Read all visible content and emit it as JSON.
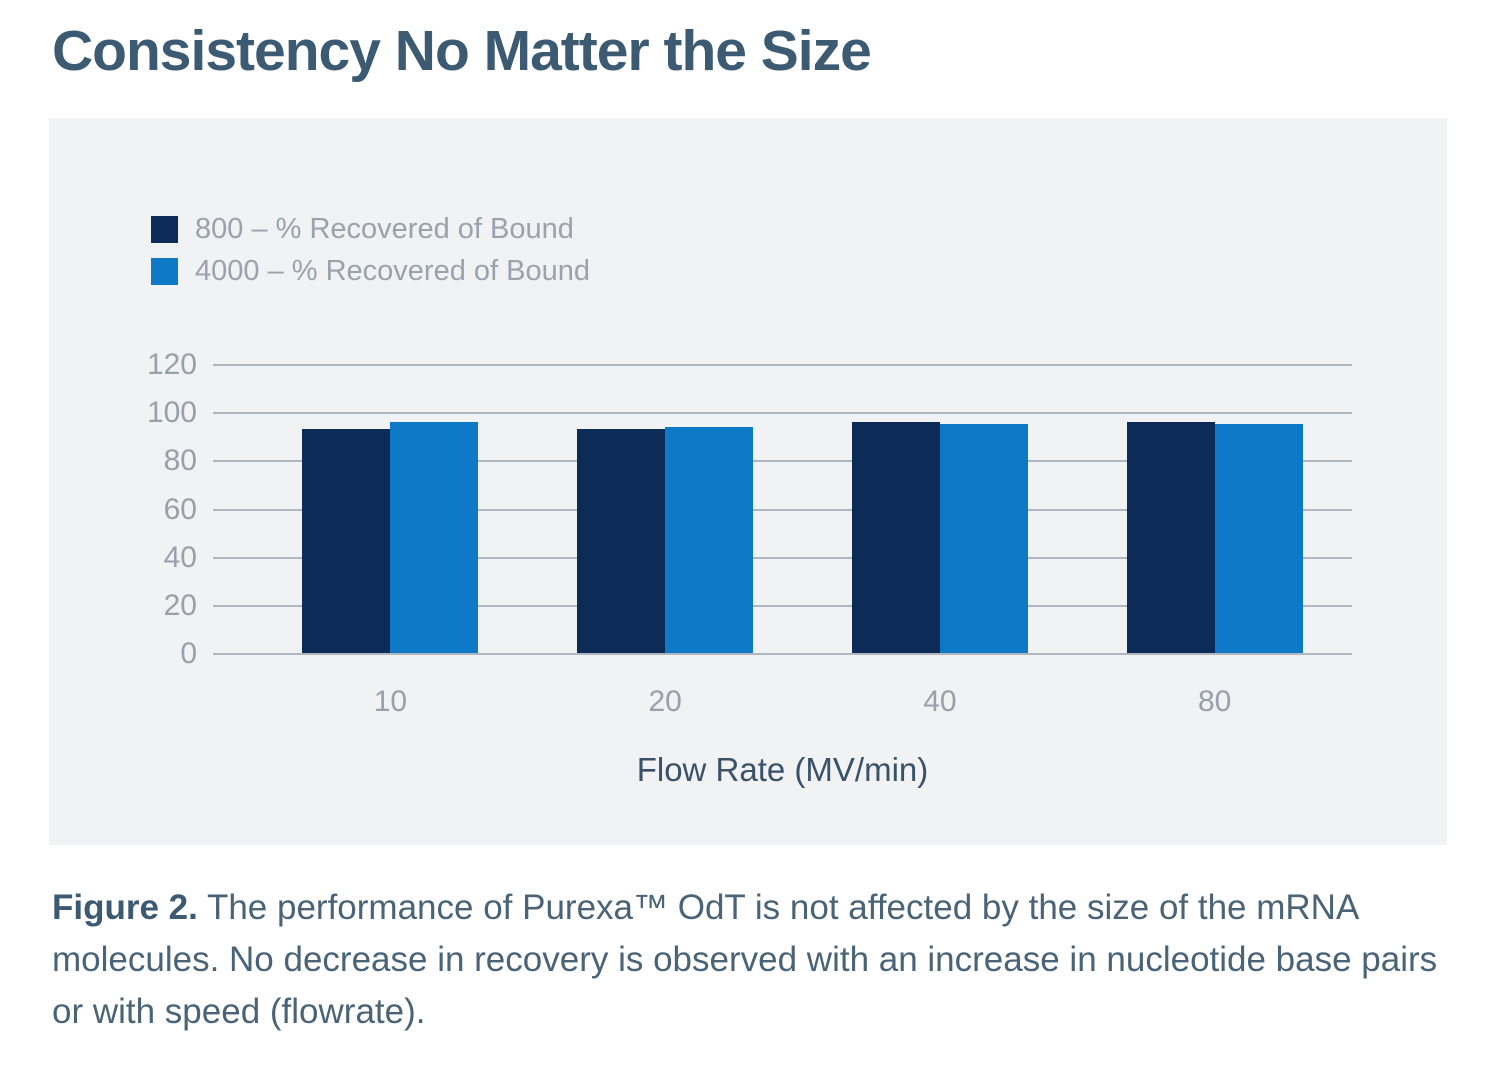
{
  "page": {
    "title": "Consistency No Matter the Size"
  },
  "chart_data": {
    "type": "bar",
    "title": "",
    "categories": [
      "10",
      "20",
      "40",
      "80"
    ],
    "series": [
      {
        "name": "800 – % Recovered of Bound",
        "color": "#0d2b57",
        "values": [
          93,
          93,
          96,
          96
        ]
      },
      {
        "name": "4000 – % Recovered of Bound",
        "color": "#0e79c7",
        "values": [
          96,
          94,
          95,
          95
        ]
      }
    ],
    "xlabel": "Flow Rate (MV/min)",
    "ylabel": "",
    "ylim": [
      0,
      120
    ],
    "yticks": [
      0,
      20,
      40,
      60,
      80,
      100,
      120
    ],
    "grid": true,
    "legend_position": "top-left",
    "panel_background": "#f0f2f4",
    "gridline_color": "#aeb7c0",
    "tick_label_color": "#98a1ab"
  },
  "caption": {
    "label": "Figure 2.",
    "text": " The performance of Purexa™ OdT is not affected by the size of the mRNA molecules. No decrease in recovery is observed with an increase in nucleotide base pairs or with speed (flowrate)."
  },
  "colors": {
    "title_text": "#3d5a73",
    "axis_title_text": "#3a5168",
    "caption_text": "#4a6377",
    "legend_text": "#9aa3ad"
  }
}
